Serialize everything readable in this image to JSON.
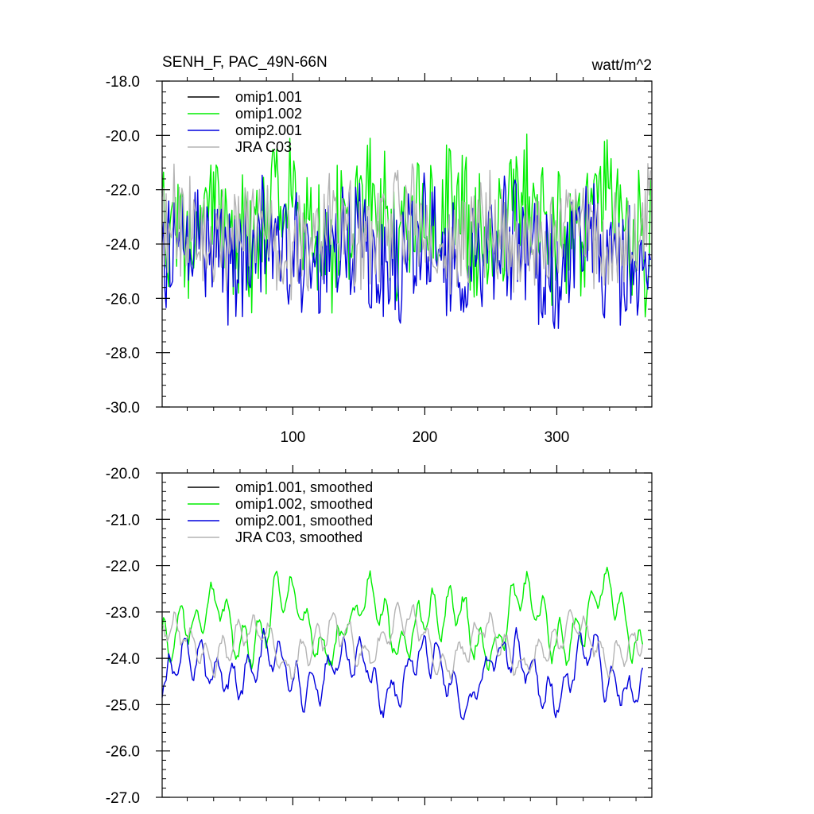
{
  "chart_data": [
    {
      "type": "line",
      "title": "SENH_F, PAC_49N-66N",
      "units": "watt/m^2",
      "xlim": [
        1,
        372
      ],
      "ylim": [
        -30.0,
        -18.0
      ],
      "x_ticks": [
        100,
        200,
        300
      ],
      "y_ticks": [
        -30.0,
        -28.0,
        -26.0,
        -24.0,
        -22.0,
        -20.0,
        -18.0
      ],
      "y_tick_labels": [
        "-30.0",
        "-28.0",
        "-26.0",
        "-24.0",
        "-22.0",
        "-20.0",
        "-18.0"
      ],
      "x_tick_labels": [
        "100",
        "200",
        "300"
      ],
      "series": [
        {
          "name": "omip1.001",
          "color": "#000000",
          "mean": -23.6,
          "amp": 1.3,
          "noise": 2.0,
          "seed": 11,
          "drawn": false
        },
        {
          "name": "omip1.002",
          "color": "#00ee00",
          "mean": -23.3,
          "amp": 1.4,
          "noise": 2.2,
          "seed": 23,
          "drawn": true
        },
        {
          "name": "omip2.001",
          "color": "#0000dd",
          "mean": -24.3,
          "amp": 1.2,
          "noise": 2.1,
          "seed": 37,
          "drawn": true
        },
        {
          "name": "JRA C03",
          "color": "#b4b4b4",
          "mean": -23.7,
          "amp": 1.0,
          "noise": 1.8,
          "seed": 51,
          "drawn": true
        }
      ]
    },
    {
      "type": "line",
      "title": "",
      "xlim": [
        1,
        372
      ],
      "ylim": [
        -27.0,
        -20.0
      ],
      "x_ticks": [
        100,
        200,
        300
      ],
      "y_ticks": [
        -27.0,
        -26.0,
        -25.0,
        -24.0,
        -23.0,
        -22.0,
        -21.0,
        -20.0
      ],
      "y_tick_labels": [
        "-27.0",
        "-26.0",
        "-25.0",
        "-24.0",
        "-23.0",
        "-22.0",
        "-21.0",
        "-20.0"
      ],
      "series": [
        {
          "name": "omip1.001, smoothed",
          "color": "#000000",
          "mean": -23.6,
          "amp": 0.9,
          "noise": 0.5,
          "seed": 11,
          "drawn": false
        },
        {
          "name": "omip1.002, smoothed",
          "color": "#00ee00",
          "mean": -23.3,
          "amp": 1.0,
          "noise": 0.5,
          "seed": 23,
          "drawn": true
        },
        {
          "name": "omip2.001, smoothed",
          "color": "#0000dd",
          "mean": -24.3,
          "amp": 0.9,
          "noise": 0.5,
          "seed": 37,
          "drawn": true
        },
        {
          "name": "JRA C03, smoothed",
          "color": "#b4b4b4",
          "mean": -23.7,
          "amp": 0.7,
          "noise": 0.4,
          "seed": 51,
          "drawn": true
        }
      ]
    }
  ]
}
